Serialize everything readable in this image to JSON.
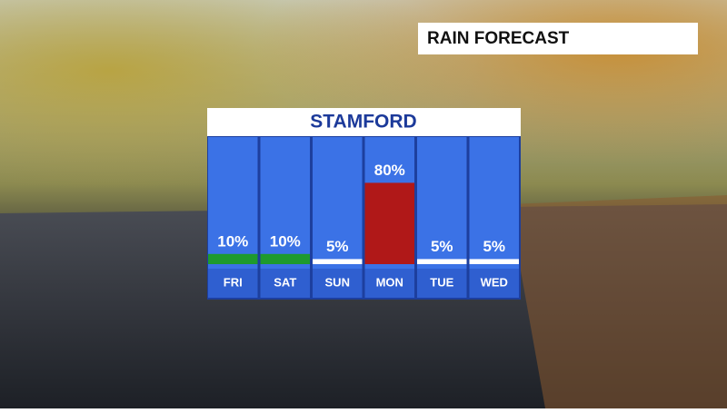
{
  "banner": "RAIN FORECAST",
  "chart_data": {
    "type": "bar",
    "title": "STAMFORD",
    "categories": [
      "FRI",
      "SAT",
      "SUN",
      "MON",
      "TUE",
      "WED"
    ],
    "values": [
      10,
      10,
      5,
      80,
      5,
      5
    ],
    "value_labels": [
      "10%",
      "10%",
      "5%",
      "80%",
      "5%",
      "5%"
    ],
    "colors": [
      "#1e9a2e",
      "#1e9a2e",
      "#ffffff",
      "#b01818",
      "#ffffff",
      "#ffffff"
    ]
  }
}
